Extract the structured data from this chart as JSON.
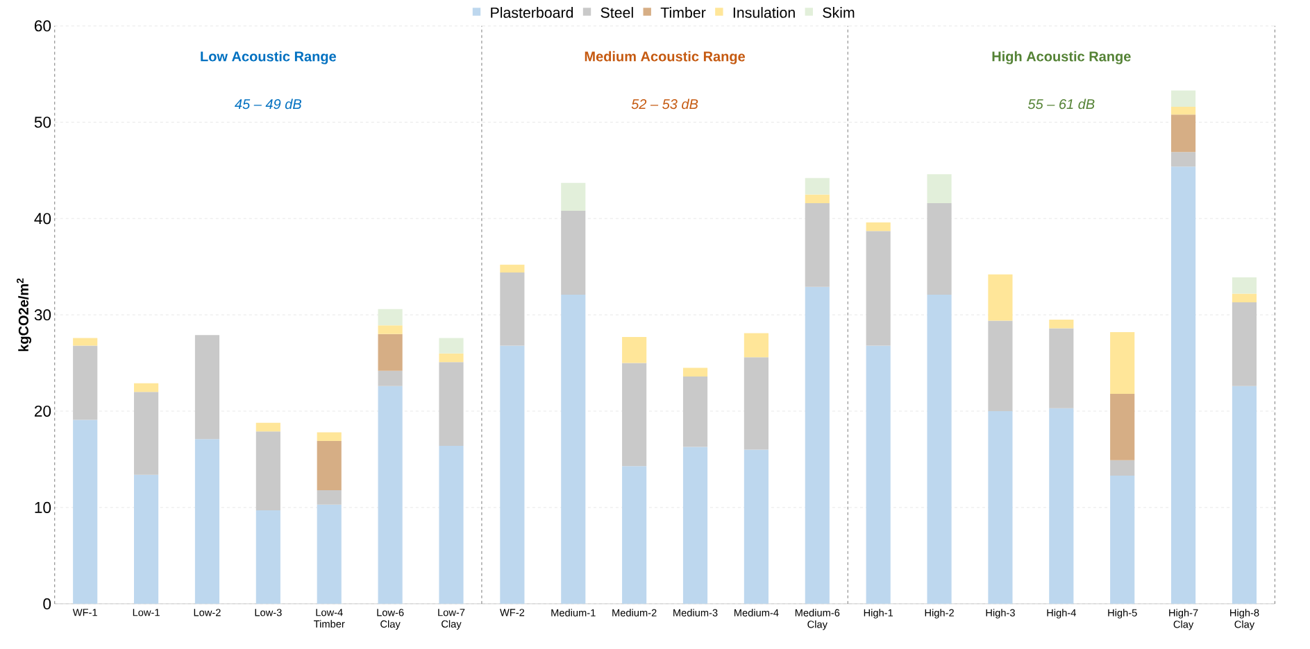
{
  "chart_data": {
    "type": "bar",
    "stacked": true,
    "ylabel": "kgCO2e/m$^{2}$",
    "categories": [
      "WF-1",
      "Low-1",
      "Low-2",
      "Low-3",
      "Low-4 Timber",
      "Low-6 Clay",
      "Low-7 Clay",
      "WF-2",
      "Medium-1",
      "Medium-2",
      "Medium-3",
      "Medium-4",
      "Medium-6 Clay",
      "High-1",
      "High-2",
      "High-3",
      "High-4",
      "High-5",
      "High-7 Clay",
      "High-8 Clay"
    ],
    "series": [
      {
        "name": "Plasterboard",
        "color": "#bdd7ee",
        "values": [
          19.1,
          13.4,
          17.1,
          9.7,
          10.3,
          22.6,
          16.4,
          26.8,
          32.1,
          14.3,
          16.3,
          16.0,
          32.9,
          26.8,
          32.1,
          20.0,
          20.3,
          13.3,
          45.4,
          22.6
        ]
      },
      {
        "name": "Steel",
        "color": "#c9c9c9",
        "values": [
          7.7,
          8.6,
          10.8,
          8.2,
          1.5,
          1.6,
          8.7,
          7.6,
          8.7,
          10.7,
          7.3,
          9.6,
          8.7,
          11.9,
          9.5,
          9.4,
          8.3,
          1.6,
          1.5,
          8.7
        ]
      },
      {
        "name": "Timber",
        "color": "#d6ae85",
        "values": [
          null,
          null,
          null,
          null,
          5.1,
          3.8,
          null,
          null,
          null,
          null,
          null,
          null,
          null,
          null,
          null,
          null,
          null,
          6.9,
          3.9,
          null
        ]
      },
      {
        "name": "Insulation",
        "color": "#ffe699",
        "values": [
          0.8,
          0.9,
          null,
          0.9,
          0.9,
          0.9,
          0.9,
          0.8,
          null,
          2.7,
          0.9,
          2.5,
          0.9,
          0.9,
          null,
          4.8,
          0.9,
          6.4,
          0.8,
          0.9
        ]
      },
      {
        "name": "Skim",
        "color": "#e2efda",
        "values": [
          null,
          null,
          null,
          null,
          null,
          1.7,
          1.6,
          null,
          2.9,
          null,
          null,
          null,
          1.7,
          null,
          3.0,
          null,
          null,
          null,
          1.7,
          1.7
        ]
      }
    ],
    "ylim": [
      0,
      60
    ],
    "yticks": [
      0,
      10,
      20,
      30,
      40,
      50,
      60
    ],
    "grid": "y",
    "legend": "top",
    "annotations": [
      "Low Acoustic Range",
      "45 – 49 dB",
      "Medium Acoustic Range",
      "52 – 53 dB",
      "High Acoustic Range",
      "55 – 61 dB"
    ]
  }
}
